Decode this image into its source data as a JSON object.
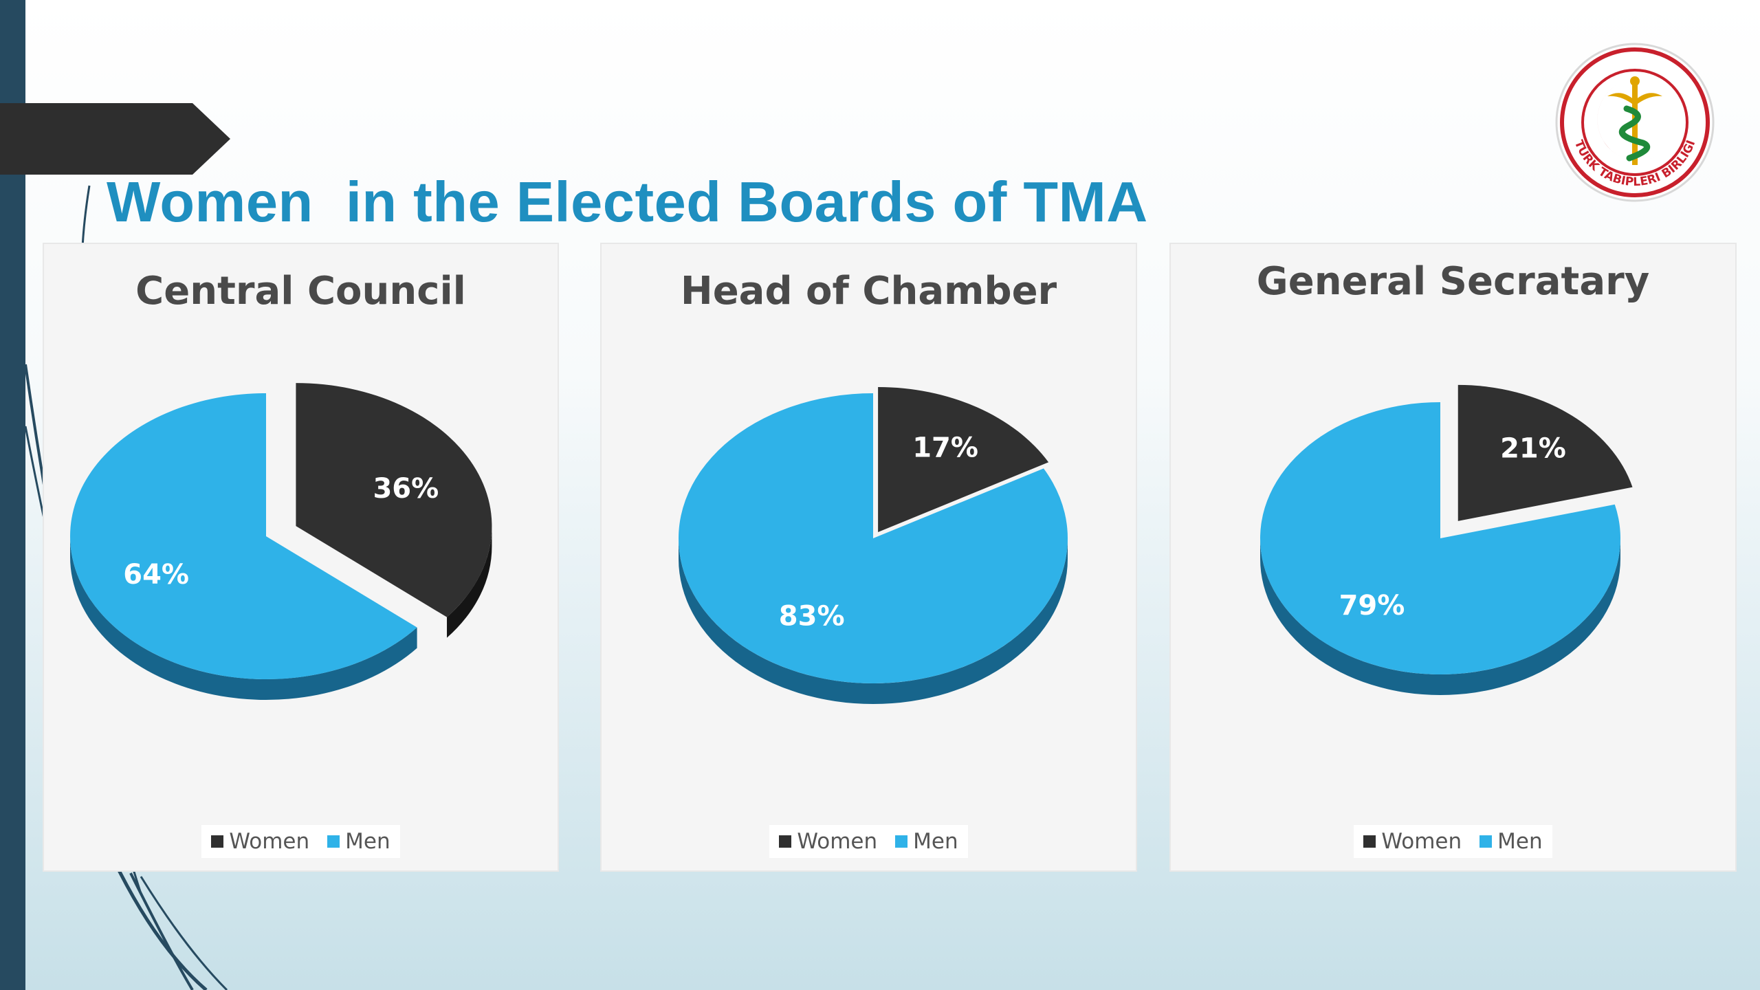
{
  "slide": {
    "title": "Women  in the Elected Boards of TMA"
  },
  "logo": {
    "text": "TÜRK TABİPLERİ BİRLİĞİ",
    "ring_color": "#c8202c",
    "cross_color": "#e0a500",
    "snake_color": "#1f8a3a"
  },
  "colors": {
    "women": "#303030",
    "women_side": "#151515",
    "men": "#2fb2e8",
    "men_side": "#17658c",
    "accent_bar": "#264a60",
    "title": "#1f8fc0"
  },
  "chart_data": [
    {
      "type": "pie",
      "title": "Central Council",
      "categories": [
        "Women",
        "Men"
      ],
      "values": [
        36,
        64
      ],
      "labels": [
        "36%",
        "64%"
      ],
      "legend": "bottom",
      "exploded": "Women"
    },
    {
      "type": "pie",
      "title": "Head of Chamber",
      "categories": [
        "Women",
        "Men"
      ],
      "values": [
        17,
        83
      ],
      "labels": [
        "17%",
        "83%"
      ],
      "legend": "bottom",
      "exploded": "Women"
    },
    {
      "type": "pie",
      "title": "General Secratary",
      "categories": [
        "Women",
        "Men"
      ],
      "values": [
        21,
        79
      ],
      "labels": [
        "21%",
        "79%"
      ],
      "legend": "bottom",
      "exploded": "Women"
    }
  ]
}
